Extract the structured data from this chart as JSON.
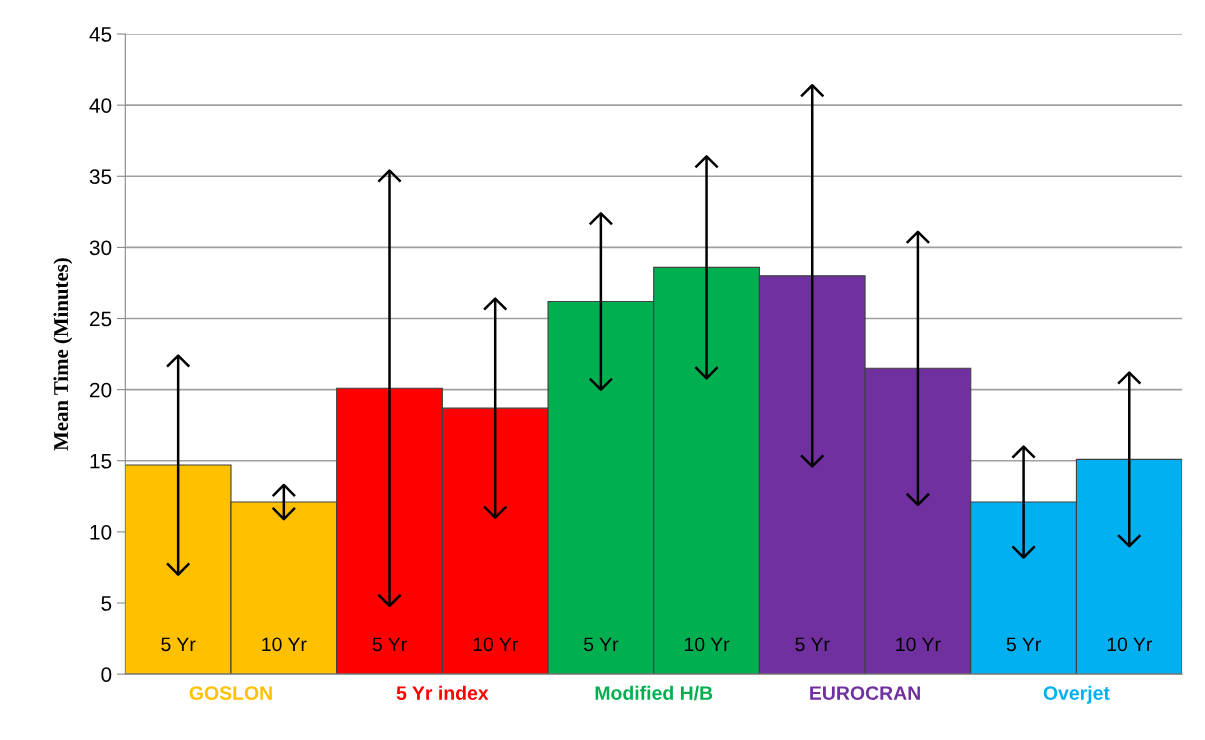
{
  "chart_data": {
    "type": "bar",
    "ylabel": "Mean Time (Minutes)",
    "categories": [
      "5 Yr",
      "10 Yr",
      "5 Yr",
      "10 Yr",
      "5 Yr",
      "10 Yr",
      "5 Yr",
      "10 Yr",
      "5 Yr",
      "10 Yr"
    ],
    "series": [
      {
        "name": "GOSLON",
        "color": "#ffc000",
        "values": [
          14.7,
          12.1,
          null,
          null,
          null,
          null,
          null,
          null,
          null,
          null
        ],
        "errors": [
          7.7,
          1.2,
          null,
          null,
          null,
          null,
          null,
          null,
          null,
          null
        ]
      },
      {
        "name": "5 Yr index",
        "color": "#ff0000",
        "values": [
          null,
          null,
          20.1,
          18.7,
          null,
          null,
          null,
          null,
          null,
          null
        ],
        "errors": [
          null,
          null,
          15.3,
          7.7,
          null,
          null,
          null,
          null,
          null,
          null
        ]
      },
      {
        "name": "Modified H/B",
        "color": "#00b050",
        "values": [
          null,
          null,
          null,
          null,
          26.2,
          28.6,
          null,
          null,
          null,
          null
        ],
        "errors": [
          null,
          null,
          null,
          null,
          6.2,
          7.8,
          null,
          null,
          null,
          null
        ]
      },
      {
        "name": "EUROCRAN",
        "color": "#7030a0",
        "values": [
          null,
          null,
          null,
          null,
          null,
          null,
          28.0,
          21.5,
          null,
          null
        ],
        "errors": [
          null,
          null,
          null,
          null,
          null,
          null,
          13.4,
          9.6,
          null,
          null
        ]
      },
      {
        "name": "Overjet",
        "color": "#00b0f0",
        "values": [
          null,
          null,
          null,
          null,
          null,
          null,
          null,
          null,
          12.1,
          15.1
        ],
        "errors": [
          null,
          null,
          null,
          null,
          null,
          null,
          null,
          null,
          3.9,
          6.1
        ]
      }
    ],
    "ylim": [
      0,
      45
    ],
    "yticks": [
      0,
      5,
      10,
      15,
      20,
      25,
      30,
      35,
      40,
      45
    ],
    "grid": "y",
    "legend": false
  }
}
